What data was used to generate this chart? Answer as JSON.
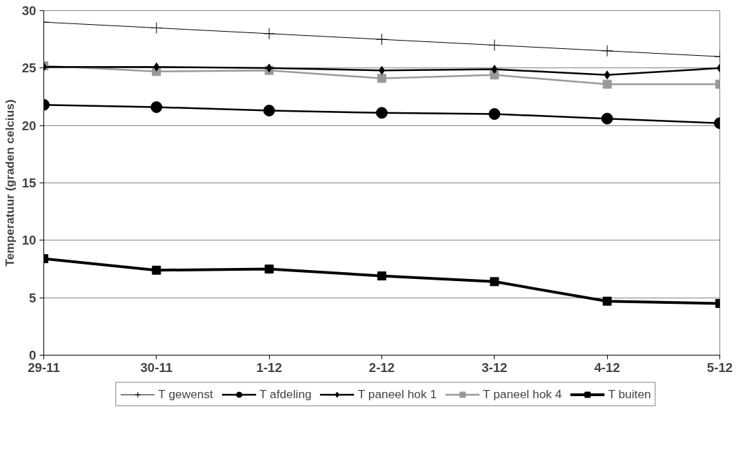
{
  "chart_data": {
    "type": "line",
    "ylabel": "Temperatuur (graden celcius)",
    "categories": [
      "29-11",
      "30-11",
      "1-12",
      "2-12",
      "3-12",
      "4-12",
      "5-12"
    ],
    "ylim": [
      0,
      30
    ],
    "yticks": [
      0,
      5,
      10,
      15,
      20,
      25,
      30
    ],
    "grid": "y",
    "legend": "bottom",
    "series": [
      {
        "name": "T gewenst",
        "color": "#000000",
        "marker": "cross",
        "values": [
          29,
          28.5,
          28,
          27.5,
          27,
          26.5,
          26
        ]
      },
      {
        "name": "T afdeling",
        "color": "#000000",
        "marker": "circle",
        "values": [
          21.8,
          21.6,
          21.3,
          21.1,
          21.0,
          20.6,
          20.2
        ]
      },
      {
        "name": "T paneel hok 1",
        "color": "#000000",
        "marker": "diamond",
        "values": [
          25.1,
          25.1,
          25.0,
          24.8,
          24.9,
          24.4,
          25.0
        ]
      },
      {
        "name": "T paneel hok 4",
        "color": "#999999",
        "marker": "square",
        "values": [
          25.2,
          24.7,
          24.8,
          24.1,
          24.4,
          23.6,
          23.6
        ]
      },
      {
        "name": "T buiten",
        "color": "#000000",
        "marker": "square",
        "values": [
          8.4,
          7.4,
          7.5,
          6.9,
          6.4,
          4.7,
          4.5
        ]
      }
    ]
  }
}
